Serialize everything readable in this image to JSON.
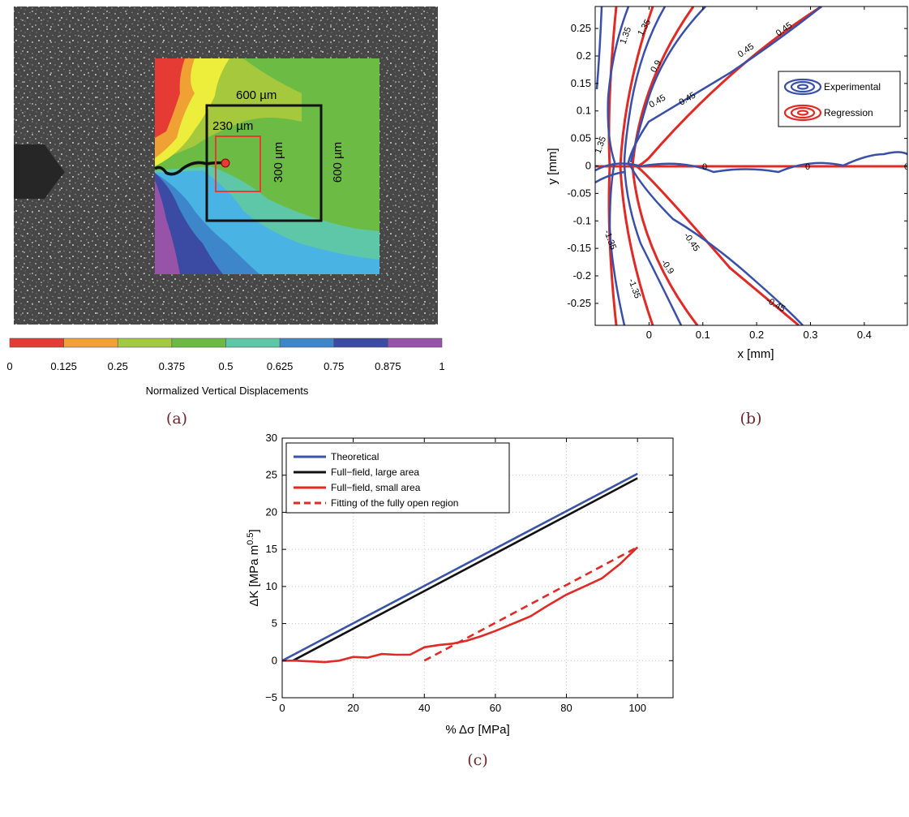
{
  "panel_a": {
    "label": "(a)",
    "annotations": [
      "600 µm",
      "230 µm",
      "300 µm",
      "600 µm"
    ],
    "colorbar": {
      "title": "Normalized Vertical Displacements",
      "ticks": [
        "0",
        "0.125",
        "0.25",
        "0.375",
        "0.5",
        "0.625",
        "0.75",
        "0.875",
        "1"
      ],
      "colors": [
        "#e63a35",
        "#efa233",
        "#a3c93f",
        "#6cb944",
        "#5ec7a8",
        "#3e86c9",
        "#3b4aa2",
        "#9653a8"
      ]
    }
  },
  "chart_data": [
    {
      "type": "line",
      "panel": "(b)",
      "xlabel": "x [mm]",
      "ylabel": "y [mm]",
      "xlim": [
        -0.1,
        0.48
      ],
      "ylim": [
        -0.29,
        0.29
      ],
      "xticks": [
        "0",
        "0.1",
        "0.2",
        "0.3",
        "0.4"
      ],
      "yticks": [
        "0.25",
        "0.2",
        "0.15",
        "0.1",
        "0.05",
        "0",
        "-0.05",
        "-0.1",
        "-0.15",
        "-0.2",
        "-0.25"
      ],
      "legend": [
        "Experimental",
        "Regression"
      ],
      "legend_position": "right-middle",
      "colors": {
        "Experimental": "#3a4fa8",
        "Regression": "#e02a25"
      },
      "contour_levels": [
        "0.45",
        "0.9",
        "1.35",
        "-0.45",
        "-0.9",
        "-1.35",
        "0"
      ]
    },
    {
      "type": "line",
      "panel": "(c)",
      "xlabel": "% Δσ [MPa]",
      "ylabel": "ΔK [MPa m^0.5]",
      "xlim": [
        0,
        110
      ],
      "ylim": [
        -5,
        30
      ],
      "xticks": [
        "0",
        "20",
        "40",
        "60",
        "80",
        "100"
      ],
      "yticks": [
        "30",
        "25",
        "20",
        "15",
        "10",
        "5",
        "0",
        "−5"
      ],
      "grid": true,
      "legend_position": "top-left",
      "series": [
        {
          "name": "Theoretical",
          "color": "#3a54a8",
          "style": "solid",
          "x": [
            0,
            100
          ],
          "y": [
            0,
            25.2
          ]
        },
        {
          "name": "Full−field, large area",
          "color": "#111111",
          "style": "solid",
          "x": [
            3,
            100
          ],
          "y": [
            0,
            24.6
          ]
        },
        {
          "name": "Full−field, small area",
          "color": "#e02a25",
          "style": "solid",
          "x": [
            0,
            4,
            8,
            12,
            16,
            20,
            24,
            28,
            32,
            36,
            40,
            44,
            48,
            52,
            56,
            60,
            65,
            70,
            75,
            80,
            85,
            90,
            95,
            100
          ],
          "y": [
            0,
            0,
            -0.1,
            -0.2,
            0,
            0.5,
            0.4,
            0.9,
            0.8,
            0.8,
            1.8,
            2.1,
            2.3,
            2.7,
            3.3,
            4.0,
            5.0,
            6.0,
            7.5,
            8.9,
            10.0,
            11.1,
            13.0,
            15.3
          ]
        },
        {
          "name": "Fitting of the fully open region",
          "color": "#e02a25",
          "style": "dashed",
          "x": [
            40,
            100
          ],
          "y": [
            0,
            15.3
          ]
        }
      ]
    }
  ],
  "panel_b_label": "(b)",
  "panel_c_label": "(c)"
}
